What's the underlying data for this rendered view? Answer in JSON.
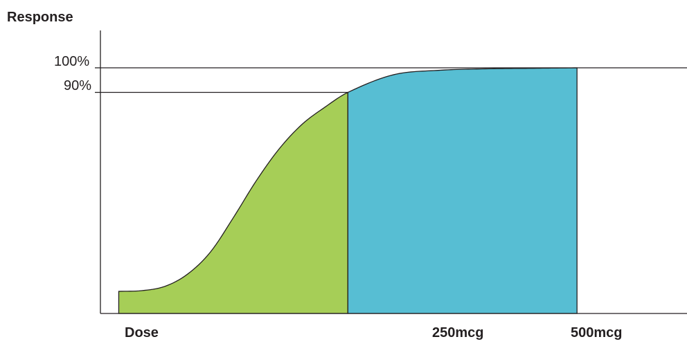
{
  "chart_data": {
    "type": "area",
    "title": "",
    "ylabel": "Response",
    "xlabel": "Dose",
    "y_ticks": [
      {
        "label": "100%",
        "value": 100
      },
      {
        "label": "90%",
        "value": 90
      }
    ],
    "x_ticks": [
      {
        "label": "250mcg",
        "value": 250
      },
      {
        "label": "500mcg",
        "value": 500
      }
    ],
    "xlim": [
      -20,
      620
    ],
    "ylim": [
      0,
      100
    ],
    "curve": {
      "x": [
        0,
        25,
        50,
        75,
        100,
        125,
        150,
        175,
        200,
        225,
        250,
        300,
        350,
        400,
        450,
        500
      ],
      "y": [
        9,
        9.3,
        11,
        16,
        25,
        39,
        54,
        67,
        77,
        84,
        90,
        97.2,
        99,
        99.6,
        99.8,
        100
      ]
    },
    "regions": [
      {
        "from": 0,
        "to": 250,
        "color": "#a6ce57"
      },
      {
        "from": 250,
        "to": 500,
        "color": "#57bed3"
      }
    ],
    "grid": false,
    "colors": {
      "axis": "#231f20",
      "text": "#231f20"
    }
  }
}
